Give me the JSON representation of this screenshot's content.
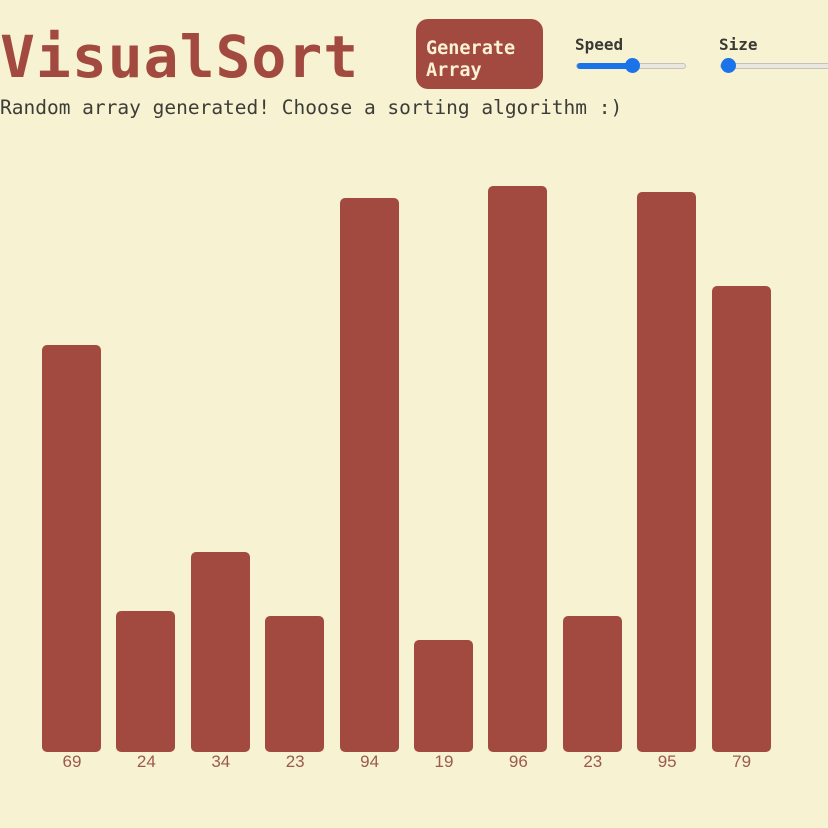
{
  "app": {
    "title": "VisualSort"
  },
  "controls": {
    "generate_label_line1": "Generate",
    "generate_label_line2": "Array",
    "speed_label": "Speed",
    "speed_value": 0.5,
    "size_label": "Size",
    "size_value": 0.0
  },
  "status": {
    "message": "Random array generated! Choose a sorting algorithm :)"
  },
  "colors": {
    "accent": "#a24a3f",
    "background": "#f7f2d2",
    "slider": "#1a73e8"
  },
  "chart_data": {
    "type": "bar",
    "categories": [
      "69",
      "24",
      "34",
      "23",
      "94",
      "19",
      "96",
      "23",
      "95",
      "79"
    ],
    "values": [
      69,
      24,
      34,
      23,
      94,
      19,
      96,
      23,
      95,
      79
    ],
    "ylim": [
      0,
      96
    ]
  }
}
